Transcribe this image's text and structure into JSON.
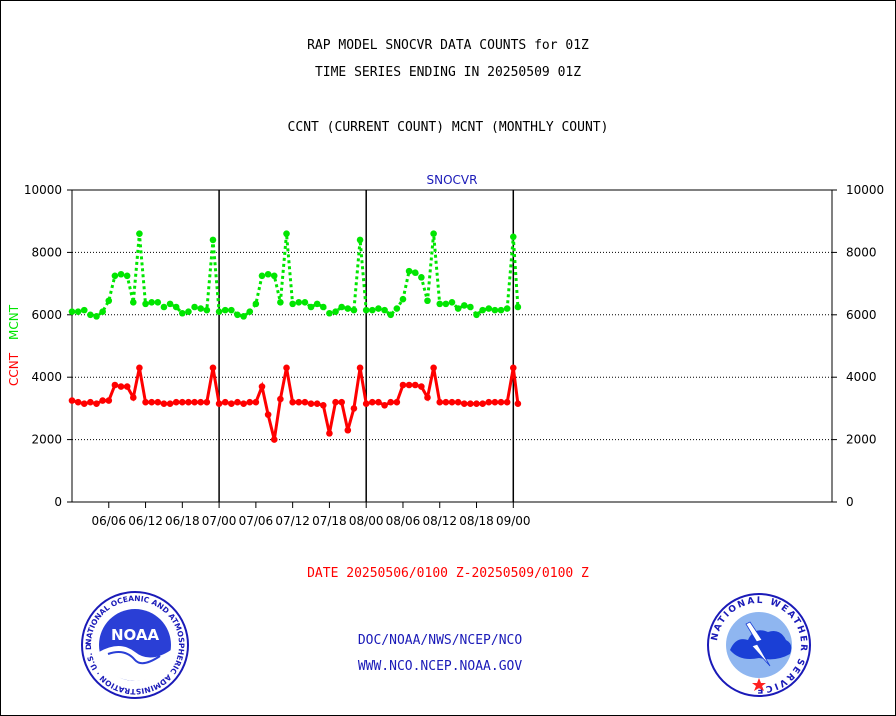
{
  "header": {
    "title_line1": "RAP MODEL SNOCVR DATA COUNTS for 01Z",
    "title_line2": "TIME SERIES ENDING IN 20250509 01Z",
    "subtitle": "CCNT (CURRENT COUNT) MCNT (MONTHLY COUNT)"
  },
  "date_range": "DATE 20250506/0100 Z-20250509/0100 Z",
  "footer": {
    "link1": "DOC/NOAA/NWS/NCEP/NCO",
    "link2": "WWW.NCO.NCEP.NOAA.GOV"
  },
  "logos": {
    "noaa_text": "NOAA",
    "noaa_ring": "NATIONAL OCEANIC AND ATMOSPHERIC ADMINISTRATION · U.S. DEPARTMENT OF COMMERCE ·",
    "nws_ring": "NATIONAL WEATHER SERVICE"
  },
  "colors": {
    "ccnt": "#ff0000",
    "mcnt": "#00e600",
    "plot_title": "#1a1ab8",
    "footer": "#1a1ab8"
  },
  "chart_data": {
    "type": "line",
    "title": "SNOCVR",
    "ylabel_ccnt": "CCNT",
    "ylabel_mcnt": "MCNT",
    "ylim": [
      0,
      10000
    ],
    "yticks": [
      "0",
      "2000",
      "4000",
      "6000",
      "8000",
      "10000"
    ],
    "xlim": [
      0,
      124
    ],
    "xticks": [
      {
        "pos": 6,
        "label": "06/06"
      },
      {
        "pos": 12,
        "label": "06/12"
      },
      {
        "pos": 18,
        "label": "06/18"
      },
      {
        "pos": 24,
        "label": "07/00"
      },
      {
        "pos": 30,
        "label": "07/06"
      },
      {
        "pos": 36,
        "label": "07/12"
      },
      {
        "pos": 42,
        "label": "07/18"
      },
      {
        "pos": 48,
        "label": "08/00"
      },
      {
        "pos": 54,
        "label": "08/06"
      },
      {
        "pos": 60,
        "label": "08/12"
      },
      {
        "pos": 66,
        "label": "08/18"
      },
      {
        "pos": 72,
        "label": "09/00"
      }
    ],
    "day_lines": [
      24,
      48,
      72
    ],
    "grid": "horizontal dotted",
    "series": [
      {
        "name": "MCNT",
        "color": "#00e600",
        "style": "dotted",
        "x": [
          0,
          1,
          2,
          3,
          4,
          5,
          6,
          7,
          8,
          9,
          10,
          11,
          12,
          13,
          14,
          15,
          16,
          17,
          18,
          19,
          20,
          21,
          22,
          23,
          24,
          25,
          26,
          27,
          28,
          29,
          30,
          31,
          32,
          33,
          34,
          35,
          36,
          37,
          38,
          39,
          40,
          41,
          42,
          43,
          44,
          45,
          46,
          47,
          48,
          49,
          50,
          51,
          52,
          53,
          54,
          55,
          56,
          57,
          58,
          59,
          60,
          61,
          62,
          63,
          64,
          65,
          66,
          67,
          68,
          69,
          70,
          71,
          72,
          72.75
        ],
        "values": [
          6100,
          6100,
          6150,
          6000,
          5950,
          6100,
          6450,
          7250,
          7300,
          7250,
          6400,
          8600,
          6350,
          6400,
          6400,
          6250,
          6350,
          6250,
          6050,
          6100,
          6250,
          6200,
          6150,
          8400,
          6100,
          6150,
          6150,
          6000,
          5950,
          6100,
          6350,
          7250,
          7300,
          7250,
          6400,
          8600,
          6350,
          6400,
          6400,
          6250,
          6350,
          6250,
          6050,
          6100,
          6250,
          6200,
          6150,
          8400,
          6150,
          6150,
          6200,
          6150,
          6000,
          6200,
          6500,
          7400,
          7350,
          7200,
          6450,
          8600,
          6350,
          6350,
          6400,
          6200,
          6300,
          6250,
          6000,
          6150,
          6200,
          6150,
          6150,
          6200,
          8500,
          6250
        ]
      },
      {
        "name": "CCNT",
        "color": "#ff0000",
        "style": "solid",
        "x": [
          0,
          1,
          2,
          3,
          4,
          5,
          6,
          7,
          8,
          9,
          10,
          11,
          12,
          13,
          14,
          15,
          16,
          17,
          18,
          19,
          20,
          21,
          22,
          23,
          24,
          25,
          26,
          27,
          28,
          29,
          30,
          31,
          32,
          33,
          34,
          35,
          36,
          37,
          38,
          39,
          40,
          41,
          42,
          43,
          44,
          45,
          46,
          47,
          48,
          49,
          50,
          51,
          52,
          53,
          54,
          55,
          56,
          57,
          58,
          59,
          60,
          61,
          62,
          63,
          64,
          65,
          66,
          67,
          68,
          69,
          70,
          71,
          72,
          72.75
        ],
        "values": [
          3250,
          3200,
          3150,
          3200,
          3150,
          3250,
          3250,
          3750,
          3700,
          3700,
          3350,
          4300,
          3200,
          3200,
          3200,
          3150,
          3150,
          3200,
          3200,
          3200,
          3200,
          3200,
          3200,
          4300,
          3150,
          3200,
          3150,
          3200,
          3150,
          3200,
          3200,
          3700,
          2800,
          2000,
          3300,
          4300,
          3200,
          3200,
          3200,
          3150,
          3150,
          3100,
          2200,
          3200,
          3200,
          2300,
          3000,
          4300,
          3150,
          3200,
          3200,
          3100,
          3200,
          3200,
          3750,
          3750,
          3750,
          3700,
          3350,
          4300,
          3200,
          3200,
          3200,
          3200,
          3150,
          3150,
          3150,
          3150,
          3200,
          3200,
          3200,
          3200,
          4300,
          3150
        ]
      }
    ]
  }
}
